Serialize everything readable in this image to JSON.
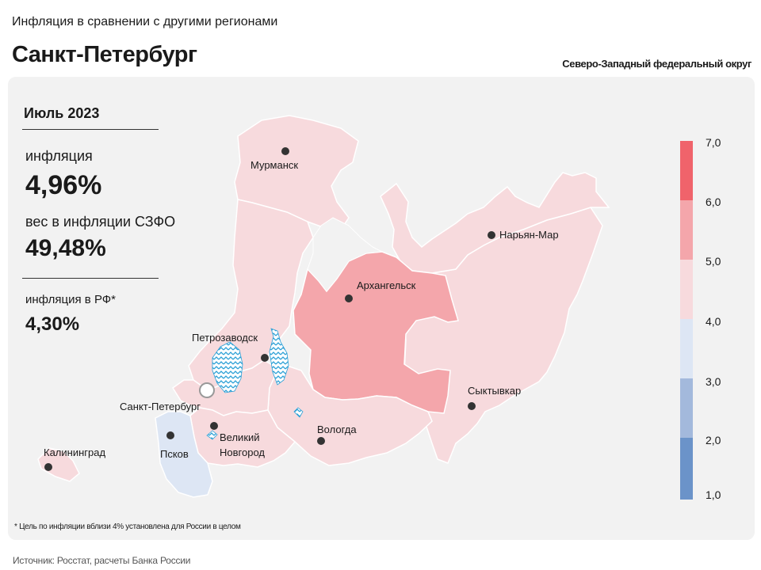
{
  "header": {
    "subtitle": "Инфляция в сравнении с другими регионами",
    "title": "Санкт-Петербург",
    "district": "Северо-Западный федеральный округ"
  },
  "stats": {
    "period": "Июль 2023",
    "inflation_label": "инфляция",
    "inflation_value": "4,96%",
    "weight_label": "вес в инфляции  СЗФО",
    "weight_value": "49,48%",
    "rf_label": "инфляция  в РФ*",
    "rf_value": "4,30%"
  },
  "map": {
    "cities": [
      {
        "name": "Мурманск",
        "label": "Мурманск"
      },
      {
        "name": "Нарьян-Мар",
        "label": "Нарьян-Мар"
      },
      {
        "name": "Архангельск",
        "label": "Архангельск"
      },
      {
        "name": "Петрозаводск",
        "label": "Петрозаводск"
      },
      {
        "name": "Санкт-Петербург",
        "label": "Санкт-Петербург"
      },
      {
        "name": "Сыктывкар",
        "label": "Сыктывкар"
      },
      {
        "name": "Вологда",
        "label": "Вологда"
      },
      {
        "name": "Великий Новгород",
        "label_line1": "Великий",
        "label_line2": "Новгород"
      },
      {
        "name": "Псков",
        "label": "Псков"
      },
      {
        "name": "Калининград",
        "label": "Калининград"
      }
    ],
    "colors": {
      "light_pink": "#f7dadd",
      "pink": "#f4a6ab",
      "light_blue": "#dde6f4",
      "lake": "#5bb8e0",
      "city_dot": "#333333"
    }
  },
  "legend": {
    "ticks": [
      "7,0",
      "6,0",
      "5,0",
      "4,0",
      "3,0",
      "2,0",
      "1,0"
    ],
    "colors": [
      "#f0636b",
      "#f4a6ab",
      "#f7dadd",
      "#dde6f4",
      "#a3b9dc",
      "#6b93c9"
    ]
  },
  "footer": {
    "note": "* Цель по инфляции вблизи 4% установлена для России в целом",
    "source": "Источник: Росстат, расчеты Банка России"
  }
}
